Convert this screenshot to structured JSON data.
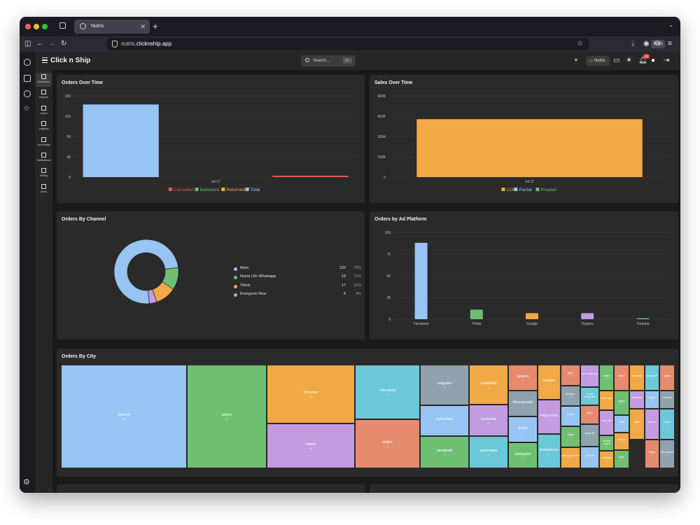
{
  "browser": {
    "tab_title": "Nutris",
    "url_prefix": "nutris.",
    "url_domain": "clicknship.app",
    "zoom": "80%"
  },
  "app": {
    "brand": "Click n Ship",
    "search_placeholder": "Search...",
    "search_shortcut": "⌘F",
    "store_name": "Nutris",
    "notification_count": "20"
  },
  "sidebar": {
    "items": [
      {
        "label": "Dashboard",
        "icon": "dashboard-icon",
        "active": true
      },
      {
        "label": "Reports",
        "icon": "reports-icon"
      },
      {
        "label": "Orders",
        "icon": "cart-icon"
      },
      {
        "label": "Logistics",
        "icon": "truck-icon"
      },
      {
        "label": "Accounting",
        "icon": "bank-icon"
      },
      {
        "label": "Notifications",
        "icon": "bell-icon"
      },
      {
        "label": "Setting",
        "icon": "settings-icon"
      },
      {
        "label": "Users",
        "icon": "users-icon"
      }
    ]
  },
  "orders_over_time": {
    "title": "Orders Over Time"
  },
  "sales_over_time": {
    "title": "Sales Over Time"
  },
  "orders_by_channel": {
    "title": "Orders By Channel"
  },
  "orders_by_ad_platform": {
    "title": "Orders by Ad Platform"
  },
  "orders_by_city": {
    "title": "Orders By City"
  },
  "chart_data": [
    {
      "type": "bar",
      "title": "Orders Over Time",
      "categories": [
        "Jul 17"
      ],
      "yticks": [
        0,
        45,
        90,
        135,
        180
      ],
      "ylim": [
        0,
        180
      ],
      "series": [
        {
          "name": "Total",
          "color": "#97c4f3",
          "values": [
            161
          ]
        },
        {
          "name": "Cancelled",
          "color": "#e05a4f",
          "values": [
            3
          ]
        },
        {
          "name": "Delivered",
          "color": "#6fbf73",
          "values": [
            0
          ]
        },
        {
          "name": "Returned",
          "color": "#f0a945",
          "values": [
            0
          ]
        }
      ],
      "legend": [
        "Cancelled",
        "Delivered",
        "Returned",
        "Total"
      ],
      "legend_position": "bottom"
    },
    {
      "type": "bar",
      "title": "Sales Over Time",
      "categories": [
        "Jul 17"
      ],
      "yticks": [
        "0",
        "150K",
        "300K",
        "450K",
        "600K"
      ],
      "ylim": [
        0,
        600000
      ],
      "series": [
        {
          "name": "COD",
          "color": "#f0a945",
          "values": [
            428000
          ]
        },
        {
          "name": "Partial",
          "color": "#97c4f3",
          "values": [
            0
          ]
        },
        {
          "name": "Prepaid",
          "color": "#6fbf73",
          "values": [
            0
          ]
        }
      ],
      "legend": [
        "COD",
        "Partial",
        "Prepaid"
      ],
      "legend_position": "bottom"
    },
    {
      "type": "pie",
      "title": "Orders By Channel",
      "slices": [
        {
          "label": "Main",
          "value": 120,
          "percent": "75%",
          "color": "#97c4f3"
        },
        {
          "label": "Nutris Life Whatsapp",
          "value": 18,
          "percent": "11%",
          "color": "#6fbf73"
        },
        {
          "label": "Tiktok",
          "value": 17,
          "percent": "11%",
          "color": "#f0a945"
        },
        {
          "label": "Energexio New",
          "value": 6,
          "percent": "4%",
          "color": "#c39be0"
        }
      ],
      "legend_position": "right"
    },
    {
      "type": "bar",
      "title": "Orders by Ad Platform",
      "categories": [
        "Facebook",
        "Tiktok",
        "Google",
        "Organic",
        "Youtube"
      ],
      "values": [
        88,
        11,
        7,
        7,
        1
      ],
      "colors": [
        "#97c4f3",
        "#6fbf73",
        "#f0a945",
        "#c39be0",
        "#6cc8d8"
      ],
      "yticks": [
        0,
        25,
        50,
        75,
        100
      ],
      "ylim": [
        0,
        100
      ]
    },
    {
      "type": "treemap",
      "title": "Orders By City",
      "cells": [
        {
          "name": "karachi",
          "value": "33",
          "color": "#97c4f3"
        },
        {
          "name": "lahore",
          "value": "21",
          "color": "#6fbf73"
        },
        {
          "name": "Unknown",
          "value": "13",
          "color": "#f0a945"
        },
        {
          "name": "multan",
          "value": "10",
          "color": "#c39be0"
        },
        {
          "name": "islamabad",
          "value": "9",
          "color": "#6cc8d8"
        },
        {
          "name": "sialkot",
          "value": "8",
          "color": "#e58a6f"
        },
        {
          "name": "sargodha",
          "value": "5",
          "color": "#8fa2ad"
        },
        {
          "name": "hyderabad",
          "value": "4",
          "color": "#97c4f3"
        },
        {
          "name": "rawalpindi",
          "value": "4",
          "color": "#6fbf73"
        },
        {
          "name": "faisalabad",
          "value": "4",
          "color": "#f0a945"
        },
        {
          "name": "jaranwala",
          "value": "3",
          "color": "#c39be0"
        },
        {
          "name": "gujranwala",
          "value": "3",
          "color": "#6cc8d8"
        },
        {
          "name": "larkana",
          "value": "2",
          "color": "#e58a6f"
        },
        {
          "name": "khurrianwala",
          "value": "2",
          "color": "#8fa2ad"
        },
        {
          "name": "kohat",
          "value": "2",
          "color": "#97c4f3"
        },
        {
          "name": "battagram",
          "value": "2",
          "color": "#6fbf73"
        },
        {
          "name": "mardan",
          "value": "2",
          "color": "#f0a945"
        },
        {
          "name": "mirpur khas",
          "value": "1",
          "color": "#c39be0"
        },
        {
          "name": "shahdad pur",
          "value": "1",
          "color": "#6cc8d8"
        },
        {
          "name": "kasur",
          "value": "1",
          "color": "#e58a6f"
        },
        {
          "name": "khairpur",
          "value": "1",
          "color": "#8fa2ad"
        },
        {
          "name": "sukkur",
          "value": "1",
          "color": "#97c4f3"
        },
        {
          "name": "swabi",
          "value": "1",
          "color": "#6fbf73"
        },
        {
          "name": "dera ghazi khan",
          "value": "1",
          "color": "#f0a945"
        },
        {
          "name": "tando allah yar",
          "value": "1",
          "color": "#c39be0"
        },
        {
          "name": "mandi bahauddin",
          "value": "1",
          "color": "#6cc8d8"
        },
        {
          "name": "fazilia",
          "value": "1",
          "color": "#e58a6f"
        },
        {
          "name": "upper dir",
          "value": "1",
          "color": "#8fa2ad"
        },
        {
          "name": "sahiwal",
          "value": "1",
          "color": "#97c4f3"
        },
        {
          "name": "daska",
          "value": "1",
          "color": "#6fbf73"
        },
        {
          "name": "rahim yar",
          "value": "1",
          "color": "#f0a945"
        },
        {
          "name": "toba tek",
          "value": "1",
          "color": "#c39be0"
        },
        {
          "name": "chowk azam",
          "value": "1",
          "color": "#6fbf73"
        },
        {
          "name": "nankana",
          "value": "1",
          "color": "#f0a945"
        },
        {
          "name": "okara",
          "value": "1",
          "color": "#e58a6f"
        },
        {
          "name": "gujrat",
          "value": "1",
          "color": "#6fbf73"
        },
        {
          "name": "taxila",
          "value": "1",
          "color": "#97c4f3"
        },
        {
          "name": "hasilpur",
          "value": "1",
          "color": "#f0a945"
        },
        {
          "name": "dadu",
          "value": "1",
          "color": "#6fbf73"
        },
        {
          "name": "khanewal",
          "value": "1",
          "color": "#f0a945"
        },
        {
          "name": "pakpattan",
          "value": "1",
          "color": "#c39be0"
        },
        {
          "name": "peshawar",
          "value": "1",
          "color": "#6cc8d8"
        },
        {
          "name": "quetta",
          "value": "1",
          "color": "#e58a6f"
        },
        {
          "name": "chakwal",
          "value": "1",
          "color": "#8fa2ad"
        },
        {
          "name": "attock",
          "value": "1",
          "color": "#97c4f3"
        },
        {
          "name": "jhelum",
          "value": "1",
          "color": "#c39be0"
        },
        {
          "name": "chiniot",
          "value": "1",
          "color": "#6cc8d8"
        },
        {
          "name": "gilgit",
          "value": "1",
          "color": "#f0a945"
        },
        {
          "name": "thang",
          "value": "1",
          "color": "#e58a6f"
        },
        {
          "name": "dera ismail",
          "value": "1",
          "color": "#8fa2ad"
        }
      ]
    }
  ]
}
